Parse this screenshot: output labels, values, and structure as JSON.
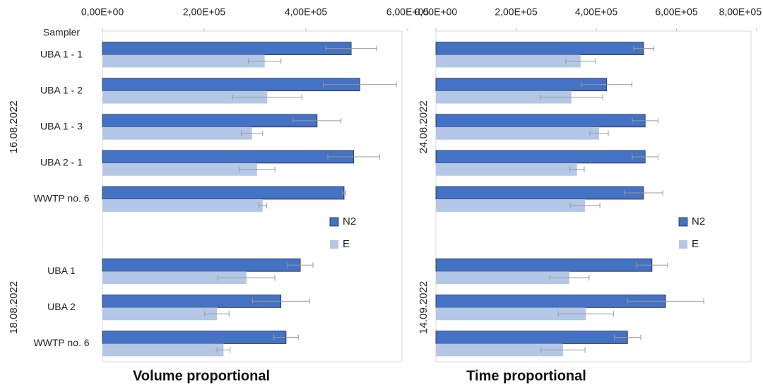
{
  "chart_data": [
    {
      "type": "bar",
      "title": "Volume proportional",
      "y_label": "Sampler",
      "categories": [
        "UBA 1 - 1",
        "UBA 1 - 2",
        "UBA 1 - 3",
        "UBA 2 - 1",
        "WWTP no. 6",
        null,
        "UBA 1",
        "UBA 2",
        "WWTP no. 6"
      ],
      "group_labels": [
        "16.08.2022",
        "18.08.2022"
      ],
      "series": [
        {
          "name": "N2",
          "color": "#4472c4",
          "values": [
            489000,
            506000,
            422000,
            494000,
            475000,
            null,
            389000,
            351000,
            361000
          ],
          "errors": [
            50000,
            72000,
            47000,
            51000,
            3000,
            null,
            25000,
            56000,
            24000
          ]
        },
        {
          "name": "E",
          "color": "#b4c7e7",
          "values": [
            319000,
            324000,
            294000,
            304000,
            315000,
            null,
            283000,
            225000,
            238000
          ],
          "errors": [
            32000,
            68000,
            21000,
            35000,
            8000,
            null,
            56000,
            24000,
            13000
          ]
        }
      ],
      "xlim": [
        0,
        600000
      ],
      "xticks": [
        {
          "value": 0,
          "label": "0,00E+00"
        },
        {
          "value": 200000,
          "label": "2,00E+05"
        },
        {
          "value": 400000,
          "label": "4,00E+05"
        },
        {
          "value": 600000,
          "label": "6,00E+05"
        }
      ],
      "legend": "center-right"
    },
    {
      "type": "bar",
      "title": "Time proportional",
      "categories": [
        null,
        null,
        null,
        null,
        null,
        null,
        null,
        null,
        null
      ],
      "group_labels": [
        "24.08.2022",
        "14.09.2022"
      ],
      "series": [
        {
          "name": "N2",
          "color": "#4472c4",
          "values": [
            518000,
            426000,
            522000,
            522000,
            518000,
            null,
            539000,
            573000,
            478000
          ],
          "errors": [
            25000,
            63000,
            32000,
            32000,
            48000,
            null,
            39000,
            95000,
            33000
          ]
        },
        {
          "name": "E",
          "color": "#b4c7e7",
          "values": [
            361000,
            338000,
            407000,
            352000,
            372000,
            null,
            333000,
            374000,
            317000
          ],
          "errors": [
            37000,
            78000,
            23000,
            18000,
            37000,
            null,
            49000,
            69000,
            55000
          ]
        }
      ],
      "xlim": [
        0,
        800000
      ],
      "xticks": [
        {
          "value": 0,
          "label": "0,00E+00"
        },
        {
          "value": 200000,
          "label": "2,00E+05"
        },
        {
          "value": 400000,
          "label": "4,00E+05"
        },
        {
          "value": 600000,
          "label": "6,00E+05"
        },
        {
          "value": 800000,
          "label": "8,00E+05"
        }
      ],
      "legend": "center-right"
    }
  ]
}
